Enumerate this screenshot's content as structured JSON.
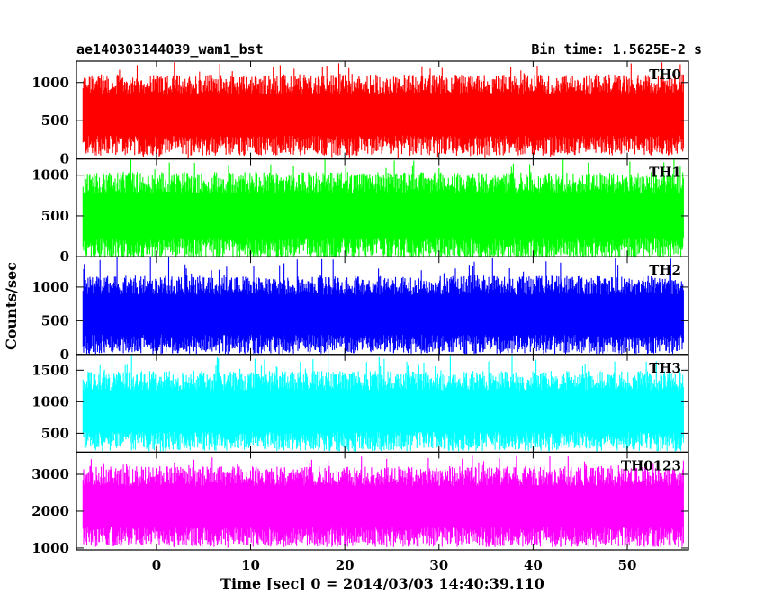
{
  "header": {
    "left_title": "ae140303144039_wam1_bst",
    "right_title": "Bin time: 1.5625E-2 s"
  },
  "axes": {
    "xlabel": "Time [sec] 0 = 2014/03/03 14:40:39.110",
    "ylabel": "Counts/sec"
  },
  "chart_data": {
    "type": "line",
    "x_range": [
      -8.5,
      56.5
    ],
    "x_data_range": [
      -7.8,
      56.0
    ],
    "x_ticks": [
      0,
      10,
      20,
      30,
      40,
      50
    ],
    "panels": [
      {
        "name": "TH0",
        "color": "#ff0000",
        "ylim": [
          0,
          1280
        ],
        "yticks": [
          0,
          500,
          1000
        ],
        "band": [
          200,
          950
        ],
        "extreme": [
          0,
          1280
        ]
      },
      {
        "name": "TH1",
        "color": "#00ff00",
        "ylim": [
          0,
          1200
        ],
        "yticks": [
          0,
          500,
          1000
        ],
        "band": [
          120,
          880
        ],
        "extreme": [
          0,
          1200
        ]
      },
      {
        "name": "TH2",
        "color": "#0000ff",
        "ylim": [
          0,
          1450
        ],
        "yticks": [
          0,
          500,
          1000
        ],
        "band": [
          180,
          1000
        ],
        "extreme": [
          0,
          1450
        ]
      },
      {
        "name": "TH3",
        "color": "#00ffff",
        "ylim": [
          200,
          1750
        ],
        "yticks": [
          500,
          1000,
          1500
        ],
        "band": [
          400,
          1300
        ],
        "extreme": [
          250,
          1750
        ]
      },
      {
        "name": "TH0123",
        "color": "#ff00ff",
        "ylim": [
          950,
          3600
        ],
        "yticks": [
          1000,
          2000,
          3000
        ],
        "band": [
          1350,
          2900
        ],
        "extreme": [
          1000,
          3500
        ]
      }
    ]
  }
}
